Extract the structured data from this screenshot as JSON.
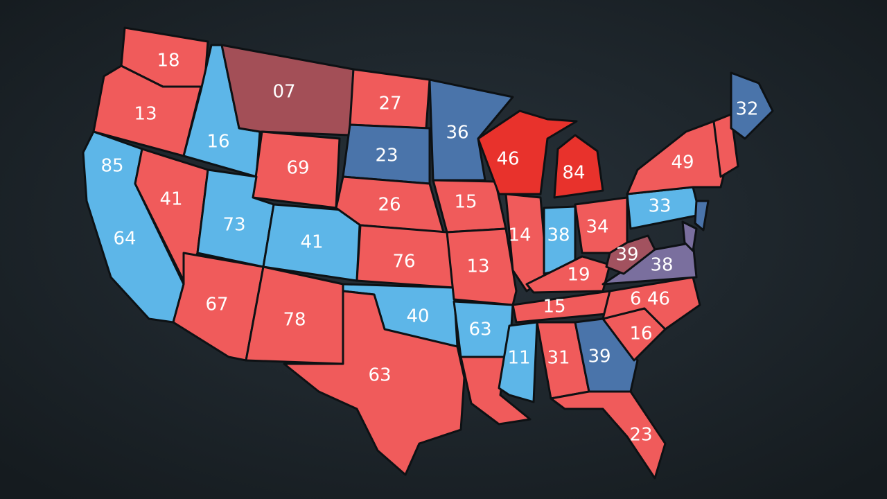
{
  "labels": [
    "18",
    "13",
    "85",
    "64",
    "41",
    "16",
    "07",
    "69",
    "73",
    "41",
    "67",
    "78",
    "27",
    "23",
    "26",
    "76",
    "40",
    "63",
    "36",
    "15",
    "13",
    "63",
    "46",
    "84",
    "14",
    "38",
    "34",
    "19",
    "15",
    "11",
    "31",
    "39",
    "23",
    "16",
    "6 46",
    "38",
    "39",
    "33",
    "49",
    "32"
  ]
}
